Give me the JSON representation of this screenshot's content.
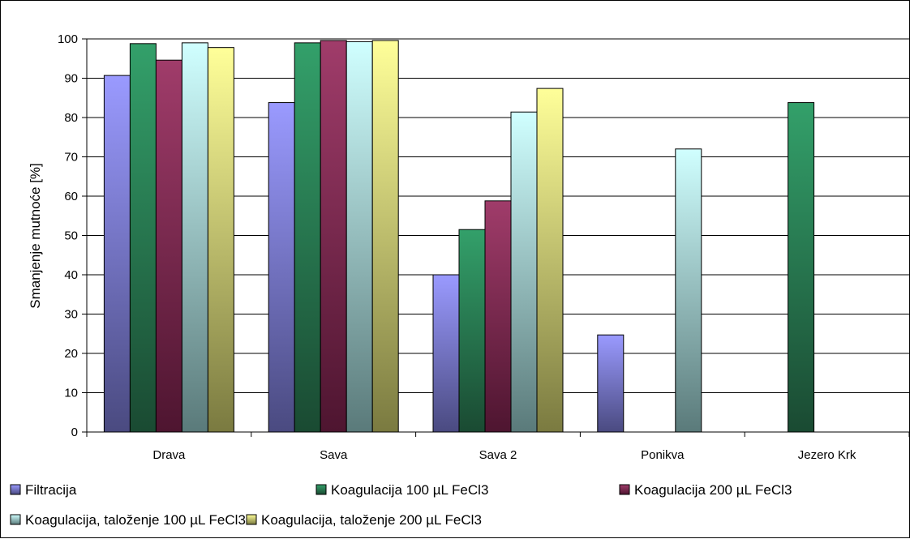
{
  "chart_data": {
    "type": "bar",
    "title": "",
    "xlabel": "",
    "ylabel": "Smanjenje mutnoće [%]",
    "ylim": [
      0,
      100
    ],
    "yticks": [
      0,
      10,
      20,
      30,
      40,
      50,
      60,
      70,
      80,
      90,
      100
    ],
    "grid": true,
    "legend_position": "bottom",
    "categories": [
      "Drava",
      "Sava",
      "Sava 2",
      "Ponikva",
      "Jezero Krk"
    ],
    "series": [
      {
        "name": "Filtracija",
        "color_top": "#9a9aff",
        "color_bottom": "#4a4a80",
        "values": [
          90.7,
          83.8,
          40.0,
          24.7,
          null
        ]
      },
      {
        "name": "Koagulacija 100 µL FeCl3",
        "color_top": "#33a06a",
        "color_bottom": "#1a4a32",
        "values": [
          98.8,
          99.0,
          51.5,
          null,
          83.8
        ]
      },
      {
        "name": "Koagulacija 200 µL FeCl3",
        "color_top": "#a03c6a",
        "color_bottom": "#4e1530",
        "values": [
          94.6,
          99.6,
          58.8,
          null,
          null
        ]
      },
      {
        "name": "Koagulacija, taloženje 100 µL FeCl3",
        "color_top": "#d0ffff",
        "color_bottom": "#5a7a7a",
        "values": [
          99.0,
          99.3,
          81.4,
          72.0,
          null
        ]
      },
      {
        "name": "Koagulacija, taloženje 200 µL FeCl3",
        "color_top": "#ffff99",
        "color_bottom": "#7a7a40",
        "values": [
          97.8,
          99.6,
          87.4,
          null,
          null
        ]
      }
    ]
  }
}
